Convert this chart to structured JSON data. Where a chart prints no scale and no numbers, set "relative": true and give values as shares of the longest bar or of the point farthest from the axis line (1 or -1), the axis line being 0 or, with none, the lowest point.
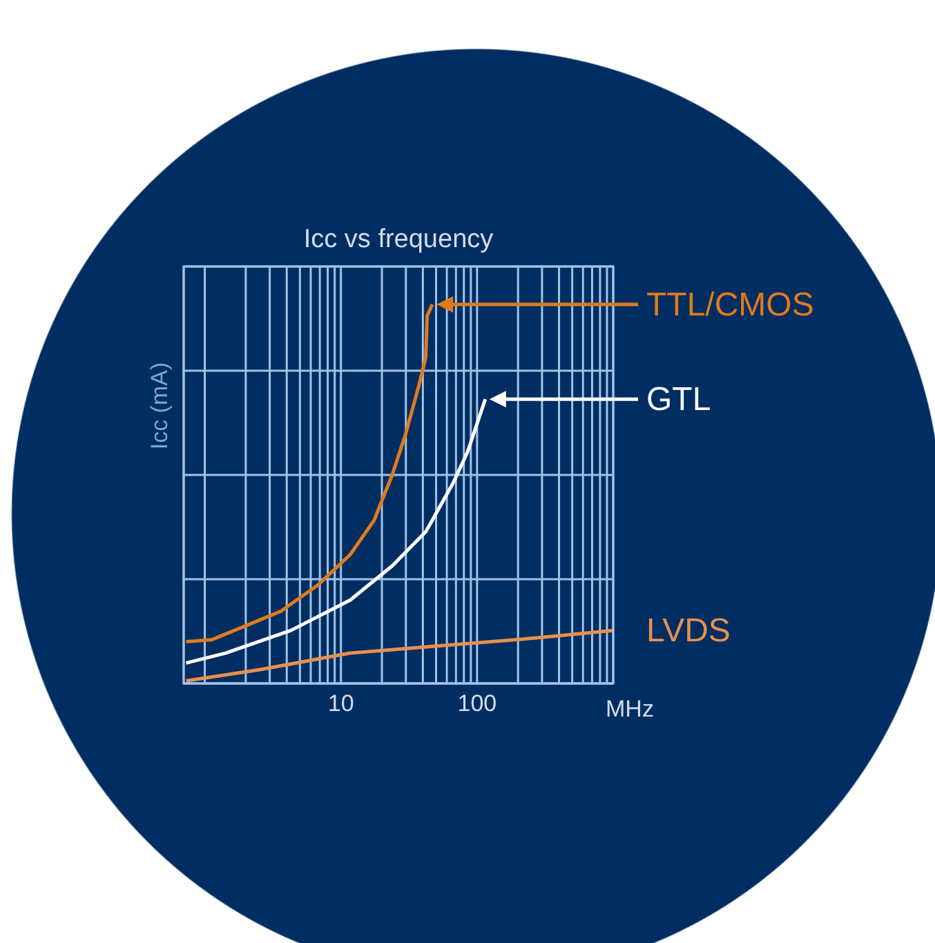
{
  "chart_data": {
    "type": "line",
    "title": "Icc vs frequency",
    "xlabel": "MHz",
    "ylabel": "Icc (mA)",
    "relative": true,
    "log": "x",
    "grid": true,
    "legend": "right",
    "marker": "none",
    "line_style": "solid",
    "xlim": [
      0.7,
      1000
    ],
    "xticks": [
      {
        "value": 1,
        "label": null
      },
      {
        "value": 2,
        "label": null
      },
      {
        "value": 3,
        "label": null
      },
      {
        "value": 4,
        "label": null
      },
      {
        "value": 5,
        "label": null
      },
      {
        "value": 6,
        "label": null
      },
      {
        "value": 7,
        "label": null
      },
      {
        "value": 8,
        "label": null
      },
      {
        "value": 9,
        "label": null
      },
      10,
      {
        "value": 20,
        "label": null
      },
      {
        "value": 30,
        "label": null
      },
      {
        "value": 40,
        "label": null
      },
      {
        "value": 50,
        "label": null
      },
      {
        "value": 60,
        "label": null
      },
      {
        "value": 70,
        "label": null
      },
      {
        "value": 80,
        "label": null
      },
      {
        "value": 90,
        "label": null
      },
      100,
      {
        "value": 200,
        "label": null
      },
      {
        "value": 300,
        "label": null
      },
      {
        "value": 400,
        "label": null
      },
      {
        "value": 500,
        "label": null
      },
      {
        "value": 600,
        "label": null
      },
      {
        "value": 700,
        "label": null
      },
      {
        "value": 800,
        "label": null
      },
      {
        "value": 900,
        "label": null
      }
    ],
    "series": [
      {
        "name": "TTL/CMOS",
        "color": "#e07b1a",
        "x": [
          0.73,
          1.12,
          1.79,
          3.6,
          6.8,
          11.7,
          17.5,
          23.8,
          30,
          37,
          42,
          43,
          47
        ],
        "values": [
          0.11,
          0.115,
          0.145,
          0.19,
          0.26,
          0.34,
          0.43,
          0.55,
          0.66,
          0.78,
          0.86,
          0.97,
          1
        ]
      },
      {
        "name": "GTL",
        "color": "#ffffff",
        "x": [
          0.73,
          1.42,
          4.3,
          11.7,
          23.8,
          42,
          67,
          85,
          115
        ],
        "values": [
          0.054,
          0.08,
          0.14,
          0.22,
          0.31,
          0.4,
          0.53,
          0.61,
          0.75
        ]
      },
      {
        "name": "LVDS",
        "color": "#e8904e",
        "x": [
          0.73,
          2.5,
          11.7,
          57,
          274,
          1000
        ],
        "values": [
          0.007,
          0.036,
          0.08,
          0.1,
          0.12,
          0.14
        ]
      }
    ]
  }
}
